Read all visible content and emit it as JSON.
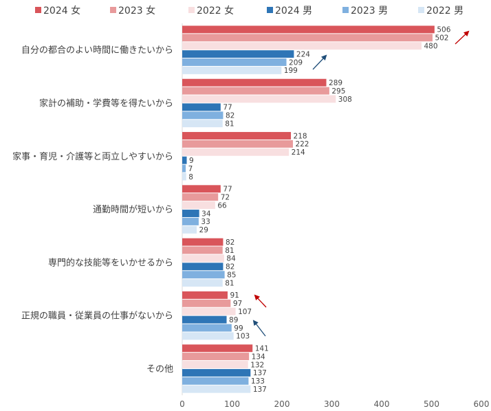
{
  "chart_data": {
    "type": "bar",
    "orientation": "horizontal",
    "title": "",
    "xlabel": "",
    "ylabel": "",
    "xlim": [
      0,
      600
    ],
    "xticks": [
      0,
      100,
      200,
      300,
      400,
      500,
      600
    ],
    "grid": false,
    "legend_position": "top",
    "categories": [
      "自分の都合のよい時間に働きたいから",
      "家計の補助・学費等を得たいから",
      "家事・育児・介護等と両立しやすいから",
      "通勤時間が短いから",
      "専門的な技能等をいかせるから",
      "正規の職員・従業員の仕事がないから",
      "その他"
    ],
    "series": [
      {
        "name": "2024 女",
        "color": "#d9555a",
        "values": [
          506,
          289,
          218,
          77,
          82,
          91,
          141
        ]
      },
      {
        "name": "2023 女",
        "color": "#e89a9b",
        "values": [
          502,
          295,
          222,
          72,
          81,
          97,
          134
        ]
      },
      {
        "name": "2022 女",
        "color": "#f8dfe0",
        "values": [
          480,
          308,
          214,
          66,
          84,
          107,
          132
        ]
      },
      {
        "name": "2024 男",
        "color": "#2e75b6",
        "values": [
          224,
          77,
          9,
          34,
          82,
          89,
          137
        ]
      },
      {
        "name": "2023 男",
        "color": "#7fb0df",
        "values": [
          209,
          82,
          7,
          33,
          85,
          99,
          133
        ]
      },
      {
        "name": "2022 男",
        "color": "#d6e6f5",
        "values": [
          199,
          81,
          8,
          29,
          81,
          103,
          137
        ]
      }
    ],
    "annotations": [
      {
        "type": "arrow",
        "direction": "up-right",
        "color": "#c00000",
        "near_category": "自分の都合のよい時間に働きたいから",
        "group": "女"
      },
      {
        "type": "arrow",
        "direction": "up-right",
        "color": "#1f4e79",
        "near_category": "自分の都合のよい時間に働きたいから",
        "group": "男"
      },
      {
        "type": "arrow",
        "direction": "up-left",
        "color": "#c00000",
        "near_category": "正規の職員・従業員の仕事がないから",
        "group": "女"
      },
      {
        "type": "arrow",
        "direction": "up-left",
        "color": "#1f4e79",
        "near_category": "正規の職員・従業員の仕事がないから",
        "group": "男"
      }
    ]
  }
}
